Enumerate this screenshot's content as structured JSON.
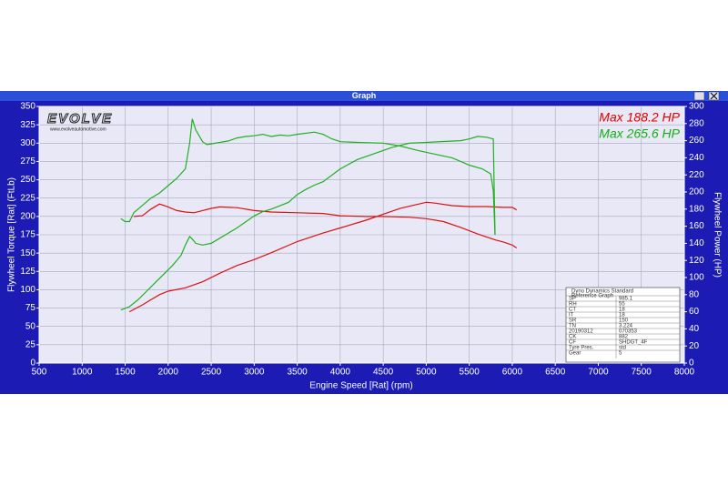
{
  "window_title": "Graph",
  "chart_data": {
    "type": "line",
    "x_label": "Engine Speed [Rat] (rpm)",
    "y_label": "Flywheel Torque [Rat] (FtLb)",
    "y2_label": "Flywheel Power (HP)",
    "logo": "EVOLVE",
    "logo_url": "www.evolveautomotive.com",
    "annotations": [
      {
        "text": "Max 188.2 HP",
        "color": "#e00000"
      },
      {
        "text": "Max 265.6 HP",
        "color": "#10b010"
      }
    ],
    "xlim": [
      500,
      8000
    ],
    "xticks": [
      500,
      1000,
      1500,
      2000,
      2500,
      3000,
      3500,
      4000,
      4500,
      5000,
      5500,
      6000,
      6500,
      7000,
      7500,
      8000
    ],
    "ylim": [
      0,
      350
    ],
    "yticks": [
      0,
      25,
      50,
      75,
      100,
      125,
      150,
      175,
      200,
      225,
      250,
      275,
      300,
      325,
      350
    ],
    "y2lim": [
      0,
      300
    ],
    "y2ticks": [
      0,
      20,
      40,
      60,
      80,
      100,
      120,
      140,
      160,
      180,
      200,
      220,
      240,
      260,
      280,
      300
    ],
    "grid": true,
    "series": [
      {
        "color": "#dd1010",
        "axis": "y",
        "x": [
          1600,
          1700,
          1800,
          1900,
          2000,
          2100,
          2200,
          2300,
          2400,
          2500,
          2600,
          2800,
          3000,
          3200,
          3500,
          3800,
          4000,
          4300,
          4500,
          4800,
          5000,
          5200,
          5400,
          5600,
          5800,
          5900,
          6000,
          6050
        ],
        "values": [
          200,
          201,
          210,
          217,
          213,
          208,
          206,
          205,
          208,
          211,
          213,
          212,
          208,
          206,
          205,
          204,
          201,
          200,
          200,
          199,
          197,
          193,
          185,
          176,
          168,
          165,
          161,
          157
        ]
      },
      {
        "color": "#dd1010",
        "axis": "y2",
        "x": [
          1550,
          1700,
          1800,
          1900,
          2000,
          2200,
          2400,
          2600,
          2800,
          3000,
          3200,
          3500,
          3800,
          4000,
          4300,
          4500,
          4700,
          5000,
          5100,
          5300,
          5500,
          5700,
          5900,
          6000,
          6050
        ],
        "values": [
          60,
          68,
          74,
          80,
          84,
          88,
          95,
          105,
          114,
          121,
          129,
          142,
          152,
          158,
          167,
          174,
          181,
          188,
          187,
          184,
          183,
          183,
          182,
          182,
          179
        ]
      },
      {
        "color": "#20b020",
        "axis": "y",
        "x": [
          1450,
          1500,
          1550,
          1600,
          1700,
          1800,
          1900,
          2000,
          2100,
          2200,
          2250,
          2280,
          2320,
          2400,
          2450,
          2500,
          2600,
          2700,
          2800,
          2900,
          3000,
          3100,
          3200,
          3300,
          3400,
          3500,
          3700,
          3800,
          3900,
          4000,
          4200,
          4500,
          4700,
          4900,
          5100,
          5300,
          5500,
          5650,
          5750,
          5780,
          5800
        ],
        "values": [
          197,
          193,
          193,
          205,
          215,
          225,
          232,
          242,
          252,
          265,
          300,
          333,
          318,
          302,
          298,
          299,
          301,
          303,
          307,
          309,
          310,
          312,
          309,
          311,
          310,
          312,
          315,
          312,
          306,
          302,
          301,
          300,
          296,
          290,
          285,
          280,
          270,
          265,
          258,
          235,
          175
        ]
      },
      {
        "color": "#20b020",
        "axis": "y2",
        "x": [
          1450,
          1550,
          1650,
          1750,
          1850,
          1950,
          2050,
          2150,
          2200,
          2250,
          2280,
          2320,
          2400,
          2500,
          2600,
          2700,
          2800,
          2900,
          3000,
          3100,
          3200,
          3400,
          3500,
          3600,
          3700,
          3800,
          4000,
          4200,
          4400,
          4600,
          4800,
          5000,
          5200,
          5400,
          5500,
          5600,
          5700,
          5780,
          5790,
          5800
        ],
        "values": [
          62,
          66,
          74,
          84,
          94,
          104,
          114,
          126,
          138,
          148,
          145,
          140,
          138,
          140,
          146,
          152,
          158,
          165,
          172,
          177,
          180,
          188,
          197,
          203,
          208,
          212,
          227,
          238,
          245,
          252,
          257,
          258,
          259,
          260,
          262,
          265,
          264,
          262,
          200,
          150
        ]
      }
    ],
    "table": {
      "title": [
        "Dyno Dynamics Standard",
        "Reference Graph"
      ],
      "rows": [
        [
          "SP",
          "985.1"
        ],
        [
          "RH",
          "55"
        ],
        [
          "CT",
          "18"
        ],
        [
          "IT",
          "18"
        ],
        [
          "SR",
          "150"
        ],
        [
          "TN",
          "3.224"
        ],
        [
          "20190312",
          "070353"
        ],
        [
          "CK",
          "882"
        ],
        [
          "CF",
          "SHDGT_4F"
        ],
        [
          "Tyre Pres.",
          "std"
        ],
        [
          "Gear",
          "5"
        ]
      ]
    }
  }
}
